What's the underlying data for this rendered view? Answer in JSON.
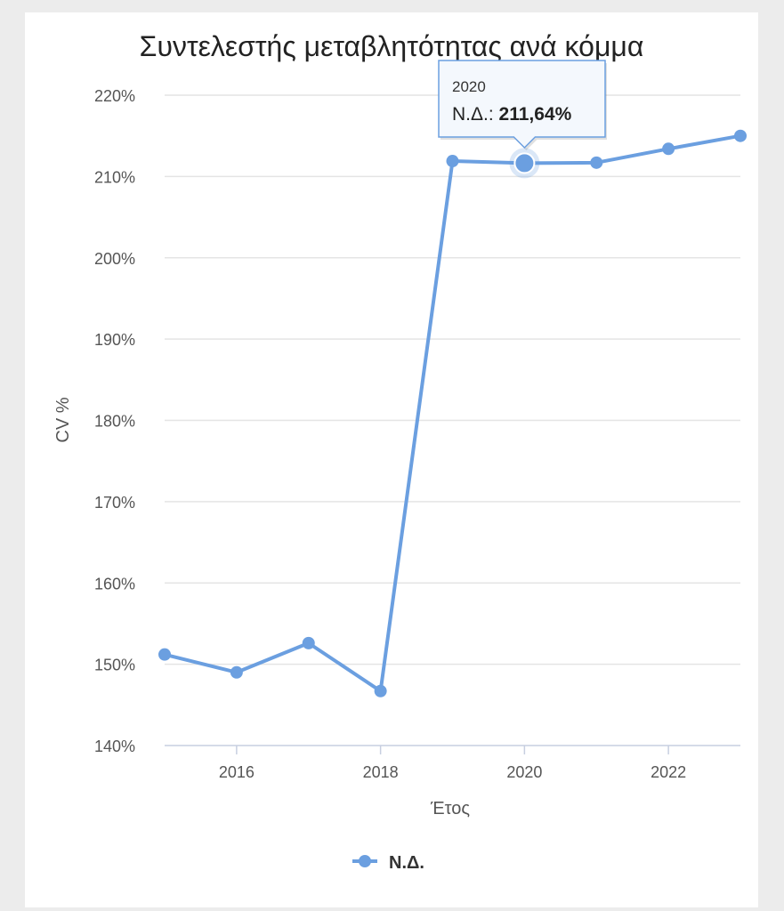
{
  "chart_data": {
    "type": "line",
    "title": "Συντελεστής μεταβλητότητας ανά κόμμα",
    "xlabel": "Έτος",
    "ylabel": "CV %",
    "x": [
      2015,
      2016,
      2017,
      2018,
      2019,
      2020,
      2021,
      2022,
      2023
    ],
    "x_ticks": [
      "2016",
      "2018",
      "2020",
      "2022"
    ],
    "y_ticks": [
      "140%",
      "150%",
      "160%",
      "170%",
      "180%",
      "190%",
      "200%",
      "210%",
      "220%"
    ],
    "ylim": [
      140,
      220
    ],
    "xlim": [
      2015,
      2023
    ],
    "grid": true,
    "legend_position": "bottom",
    "series": [
      {
        "name": "Ν.Δ.",
        "color": "#6b9fe0",
        "values": [
          151.2,
          149.0,
          152.6,
          146.7,
          211.9,
          211.64,
          211.7,
          213.4,
          215.0
        ]
      }
    ],
    "tooltip": {
      "header": "2020",
      "series_label": "Ν.Δ.: ",
      "value": "211,64%",
      "x": 2020
    }
  }
}
